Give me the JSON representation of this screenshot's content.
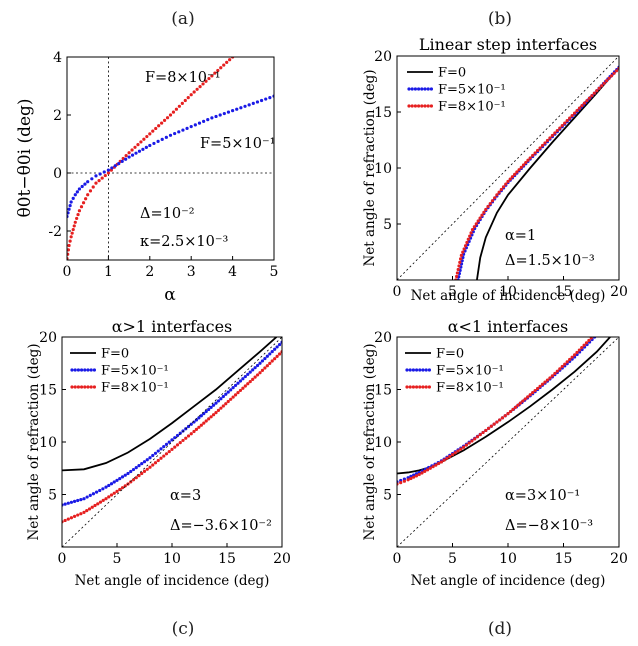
{
  "figure": {
    "panel_labels": [
      "(a)",
      "(b)",
      "(c)",
      "(d)"
    ]
  },
  "colors": {
    "F0": "#000000",
    "F5": "#1a1ae6",
    "F8": "#e62020",
    "ref": "#000000"
  },
  "chart_data": [
    {
      "id": "a",
      "type": "scatter",
      "title": "",
      "xlabel": "α",
      "ylabel": "θ0t−θ0i (deg)",
      "xlim": [
        0,
        5
      ],
      "ylim": [
        -3,
        4
      ],
      "xticks": [
        0,
        1,
        2,
        3,
        4,
        5
      ],
      "yticks": [
        -2,
        0,
        2,
        4
      ],
      "reference_lines": {
        "vertical_x": 1,
        "horizontal_y": 0
      },
      "series": [
        {
          "name": "F=8×10⁻¹",
          "color": "#e62020",
          "x": [
            0.0,
            0.05,
            0.1,
            0.2,
            0.3,
            0.5,
            0.7,
            1.0,
            1.5,
            2.0,
            2.5,
            3.0,
            3.5,
            4.0
          ],
          "y": [
            -2.95,
            -2.5,
            -2.2,
            -1.7,
            -1.3,
            -0.75,
            -0.35,
            0.0,
            0.7,
            1.35,
            2.0,
            2.7,
            3.35,
            4.0
          ]
        },
        {
          "name": "F=5×10⁻¹",
          "color": "#1a1ae6",
          "x": [
            0.0,
            0.1,
            0.2,
            0.3,
            0.5,
            0.7,
            1.0,
            1.5,
            2.0,
            2.5,
            3.0,
            3.5,
            4.0,
            4.5,
            5.0
          ],
          "y": [
            -1.5,
            -1.0,
            -0.75,
            -0.55,
            -0.3,
            -0.1,
            0.1,
            0.55,
            0.95,
            1.3,
            1.6,
            1.9,
            2.15,
            2.4,
            2.65
          ]
        }
      ],
      "annotations": [
        {
          "text": "F=8×10⁻¹"
        },
        {
          "text": "F=5×10⁻¹"
        },
        {
          "text": "Δ=10⁻²"
        },
        {
          "text": "κ=2.5×10⁻³"
        }
      ]
    },
    {
      "id": "b",
      "type": "line",
      "title": "Linear step interfaces",
      "xlabel": "Net angle of incidence (deg)",
      "ylabel": "Net angle of refraction (deg)",
      "xlim": [
        0,
        20
      ],
      "ylim": [
        0,
        20
      ],
      "xticks": [
        0,
        5,
        10,
        15,
        20
      ],
      "yticks": [
        5,
        10,
        15,
        20
      ],
      "legend": [
        "F=0",
        "F=5×10⁻¹",
        "F=8×10⁻¹"
      ],
      "series": [
        {
          "name": "F=0",
          "color": "#000000",
          "style": "solid",
          "x": [
            7.2,
            7.5,
            8.0,
            9.0,
            10.0,
            12.0,
            14.0,
            16.0,
            18.0,
            20.0
          ],
          "y": [
            0.0,
            2.0,
            3.8,
            6.0,
            7.6,
            10.0,
            12.3,
            14.5,
            16.7,
            19.0
          ]
        },
        {
          "name": "F=5×10⁻¹",
          "color": "#1a1ae6",
          "style": "dotted",
          "x": [
            5.5,
            6.0,
            7.0,
            8.0,
            9.0,
            10.0,
            12.0,
            14.0,
            16.0,
            18.0,
            20.0
          ],
          "y": [
            0.0,
            2.3,
            4.6,
            6.2,
            7.5,
            8.7,
            10.8,
            12.8,
            14.8,
            16.9,
            19.0
          ]
        },
        {
          "name": "F=8×10⁻¹",
          "color": "#e62020",
          "style": "dotted",
          "x": [
            5.3,
            5.8,
            6.8,
            8.0,
            9.0,
            10.0,
            12.0,
            14.0,
            16.0,
            18.0,
            20.0
          ],
          "y": [
            0.0,
            2.2,
            4.5,
            6.3,
            7.6,
            8.8,
            10.9,
            12.9,
            14.9,
            16.9,
            18.9
          ]
        },
        {
          "name": "",
          "color": "#000000",
          "style": "thin-dotted",
          "x": [
            0,
            20
          ],
          "y": [
            0,
            20
          ]
        }
      ],
      "annotations": [
        {
          "text": "α=1"
        },
        {
          "text": "Δ=1.5×10⁻³"
        }
      ]
    },
    {
      "id": "c",
      "type": "line",
      "title": "α>1 interfaces",
      "xlabel": "Net angle of incidence (deg)",
      "ylabel": "Net angle of refraction (deg)",
      "xlim": [
        0,
        20
      ],
      "ylim": [
        0,
        20
      ],
      "xticks": [
        0,
        5,
        10,
        15,
        20
      ],
      "yticks": [
        5,
        10,
        15,
        20
      ],
      "legend": [
        "F=0",
        "F=5×10⁻¹",
        "F=8×10⁻¹"
      ],
      "series": [
        {
          "name": "F=0",
          "color": "#000000",
          "style": "solid",
          "x": [
            0,
            2,
            4,
            6,
            8,
            10,
            12,
            14,
            16,
            18,
            19.5
          ],
          "y": [
            7.3,
            7.4,
            8.0,
            9.0,
            10.3,
            11.8,
            13.4,
            15.0,
            16.8,
            18.6,
            20.0
          ]
        },
        {
          "name": "F=5×10⁻¹",
          "color": "#1a1ae6",
          "style": "dotted",
          "x": [
            0,
            2,
            4,
            6,
            8,
            10,
            12,
            14,
            16,
            18,
            20
          ],
          "y": [
            4.0,
            4.6,
            5.7,
            7.0,
            8.5,
            10.2,
            11.9,
            13.7,
            15.6,
            17.5,
            19.5
          ]
        },
        {
          "name": "F=8×10⁻¹",
          "color": "#e62020",
          "style": "dotted",
          "x": [
            0,
            2,
            4,
            6,
            8,
            10,
            12,
            14,
            16,
            18,
            20
          ],
          "y": [
            2.4,
            3.3,
            4.6,
            6.0,
            7.6,
            9.3,
            11.0,
            12.8,
            14.7,
            16.6,
            18.6
          ]
        },
        {
          "name": "",
          "color": "#000000",
          "style": "thin-dotted",
          "x": [
            0,
            20
          ],
          "y": [
            0,
            20
          ]
        }
      ],
      "annotations": [
        {
          "text": "α=3"
        },
        {
          "text": "Δ=−3.6×10⁻²"
        }
      ]
    },
    {
      "id": "d",
      "type": "line",
      "title": "α<1 interfaces",
      "xlabel": "Net angle of incidence (deg)",
      "ylabel": "Net angle of refraction (deg)",
      "xlim": [
        0,
        20
      ],
      "ylim": [
        0,
        20
      ],
      "xticks": [
        0,
        5,
        10,
        15,
        20
      ],
      "yticks": [
        5,
        10,
        15,
        20
      ],
      "legend": [
        "F=0",
        "F=5×10⁻¹",
        "F=8×10⁻¹"
      ],
      "series": [
        {
          "name": "F=0",
          "color": "#000000",
          "style": "solid",
          "x": [
            0,
            1,
            2,
            3,
            4,
            6,
            8,
            10,
            12,
            14,
            16,
            18,
            19.2
          ],
          "y": [
            7.0,
            7.1,
            7.3,
            7.6,
            8.1,
            9.2,
            10.5,
            11.9,
            13.4,
            15.0,
            16.7,
            18.6,
            20.0
          ]
        },
        {
          "name": "F=5×10⁻¹",
          "color": "#1a1ae6",
          "style": "dotted",
          "x": [
            0,
            1,
            2,
            4,
            6,
            8,
            10,
            12,
            14,
            16,
            17.8
          ],
          "y": [
            6.2,
            6.6,
            7.1,
            8.2,
            9.6,
            11.1,
            12.7,
            14.4,
            16.2,
            18.1,
            20.0
          ]
        },
        {
          "name": "F=8×10⁻¹",
          "color": "#e62020",
          "style": "dotted",
          "x": [
            0,
            1,
            2,
            4,
            6,
            8,
            10,
            12,
            14,
            16,
            17.5
          ],
          "y": [
            6.0,
            6.4,
            6.9,
            8.1,
            9.5,
            11.1,
            12.7,
            14.5,
            16.3,
            18.3,
            19.9
          ]
        },
        {
          "name": "",
          "color": "#000000",
          "style": "thin-dotted",
          "x": [
            0,
            20
          ],
          "y": [
            0,
            20
          ]
        }
      ],
      "annotations": [
        {
          "text": "α=3×10⁻¹"
        },
        {
          "text": "Δ=−8×10⁻³"
        }
      ]
    }
  ]
}
